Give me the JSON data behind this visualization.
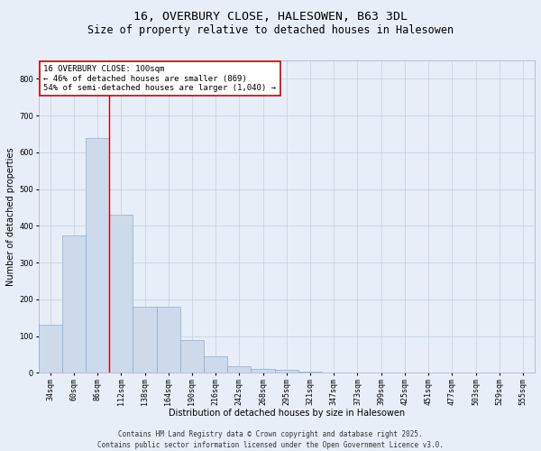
{
  "title_line1": "16, OVERBURY CLOSE, HALESOWEN, B63 3DL",
  "title_line2": "Size of property relative to detached houses in Halesowen",
  "xlabel": "Distribution of detached houses by size in Halesowen",
  "ylabel": "Number of detached properties",
  "categories": [
    "34sqm",
    "60sqm",
    "86sqm",
    "112sqm",
    "138sqm",
    "164sqm",
    "190sqm",
    "216sqm",
    "242sqm",
    "268sqm",
    "295sqm",
    "321sqm",
    "347sqm",
    "373sqm",
    "399sqm",
    "425sqm",
    "451sqm",
    "477sqm",
    "503sqm",
    "529sqm",
    "555sqm"
  ],
  "values": [
    130,
    375,
    640,
    430,
    180,
    180,
    90,
    45,
    18,
    11,
    7,
    3,
    0,
    0,
    0,
    0,
    0,
    0,
    0,
    0,
    0
  ],
  "bar_color": "#ccdaec",
  "bar_edge_color": "#8aaed4",
  "grid_color": "#c8d4e4",
  "background_color": "#e8eef8",
  "red_line_x": 2.5,
  "annotation_text": "16 OVERBURY CLOSE: 100sqm\n← 46% of detached houses are smaller (869)\n54% of semi-detached houses are larger (1,040) →",
  "annotation_box_facecolor": "#ffffff",
  "annotation_box_edgecolor": "#cc0000",
  "ylim": [
    0,
    850
  ],
  "yticks": [
    0,
    100,
    200,
    300,
    400,
    500,
    600,
    700,
    800
  ],
  "footer_line1": "Contains HM Land Registry data © Crown copyright and database right 2025.",
  "footer_line2": "Contains public sector information licensed under the Open Government Licence v3.0.",
  "title_fontsize": 9.5,
  "subtitle_fontsize": 8.5,
  "axis_label_fontsize": 7,
  "tick_fontsize": 6,
  "annotation_fontsize": 6.5,
  "footer_fontsize": 5.5
}
